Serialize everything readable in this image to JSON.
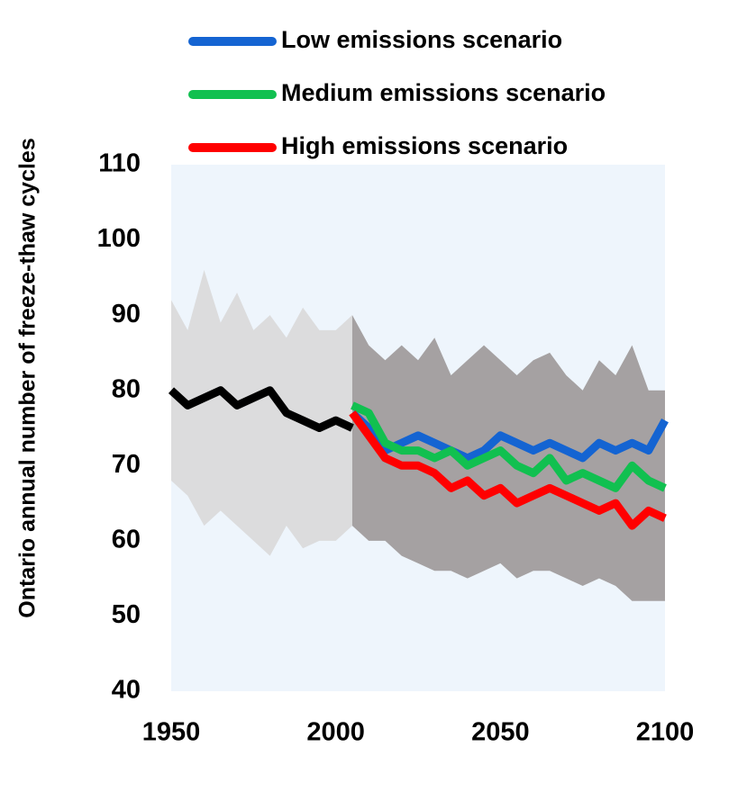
{
  "chart_data": {
    "type": "line",
    "y_label": "Ontario annual number of freeze-thaw cycles",
    "xlim": [
      1950,
      2100
    ],
    "ylim": [
      40,
      110
    ],
    "xticks": [
      1950,
      2000,
      2050,
      2100
    ],
    "yticks": [
      40,
      50,
      60,
      70,
      80,
      90,
      100,
      110
    ],
    "background": "#eef5fc",
    "legend": "top",
    "bands": [
      {
        "color": "#d9d9d9",
        "x": [
          1950,
          1955,
          1960,
          1965,
          1970,
          1975,
          1980,
          1985,
          1990,
          1995,
          2000,
          2005
        ],
        "upper": [
          92,
          88,
          96,
          89,
          93,
          88,
          90,
          87,
          91,
          88,
          88,
          90
        ],
        "lower": [
          68,
          66,
          62,
          64,
          62,
          60,
          58,
          62,
          59,
          60,
          60,
          62
        ]
      },
      {
        "color": "#9c9898",
        "x": [
          2005,
          2010,
          2015,
          2020,
          2025,
          2030,
          2035,
          2040,
          2045,
          2050,
          2055,
          2060,
          2065,
          2070,
          2075,
          2080,
          2085,
          2090,
          2095,
          2100
        ],
        "upper": [
          90,
          86,
          84,
          86,
          84,
          87,
          82,
          84,
          86,
          84,
          82,
          84,
          85,
          82,
          80,
          84,
          82,
          86,
          80,
          80
        ],
        "lower": [
          62,
          60,
          60,
          58,
          57,
          56,
          56,
          55,
          56,
          57,
          55,
          56,
          56,
          55,
          54,
          55,
          54,
          52,
          52,
          52
        ]
      }
    ],
    "series": [
      {
        "color": "#000000",
        "x": [
          1950,
          1955,
          1960,
          1965,
          1970,
          1975,
          1980,
          1985,
          1990,
          1995,
          2000,
          2005
        ],
        "values": [
          80,
          78,
          79,
          80,
          78,
          79,
          80,
          77,
          76,
          75,
          76,
          75
        ]
      },
      {
        "name": "Low emissions scenario",
        "color": "#1464d2",
        "x": [
          2005,
          2010,
          2015,
          2020,
          2025,
          2030,
          2035,
          2040,
          2045,
          2050,
          2055,
          2060,
          2065,
          2070,
          2075,
          2080,
          2085,
          2090,
          2095,
          2100
        ],
        "values": [
          77,
          75,
          72,
          73,
          74,
          73,
          72,
          71,
          72,
          74,
          73,
          72,
          73,
          72,
          71,
          73,
          72,
          73,
          72,
          76
        ]
      },
      {
        "name": "Medium emissions scenario",
        "color": "#11c050",
        "x": [
          2005,
          2010,
          2015,
          2020,
          2025,
          2030,
          2035,
          2040,
          2045,
          2050,
          2055,
          2060,
          2065,
          2070,
          2075,
          2080,
          2085,
          2090,
          2095,
          2100
        ],
        "values": [
          78,
          77,
          73,
          72,
          72,
          71,
          72,
          70,
          71,
          72,
          70,
          69,
          71,
          68,
          69,
          68,
          67,
          70,
          68,
          67
        ]
      },
      {
        "name": "High emissions scenario",
        "color": "#ff0000",
        "x": [
          2005,
          2010,
          2015,
          2020,
          2025,
          2030,
          2035,
          2040,
          2045,
          2050,
          2055,
          2060,
          2065,
          2070,
          2075,
          2080,
          2085,
          2090,
          2095,
          2100
        ],
        "values": [
          77,
          74,
          71,
          70,
          70,
          69,
          67,
          68,
          66,
          67,
          65,
          66,
          67,
          66,
          65,
          64,
          65,
          62,
          64,
          63
        ]
      }
    ]
  }
}
